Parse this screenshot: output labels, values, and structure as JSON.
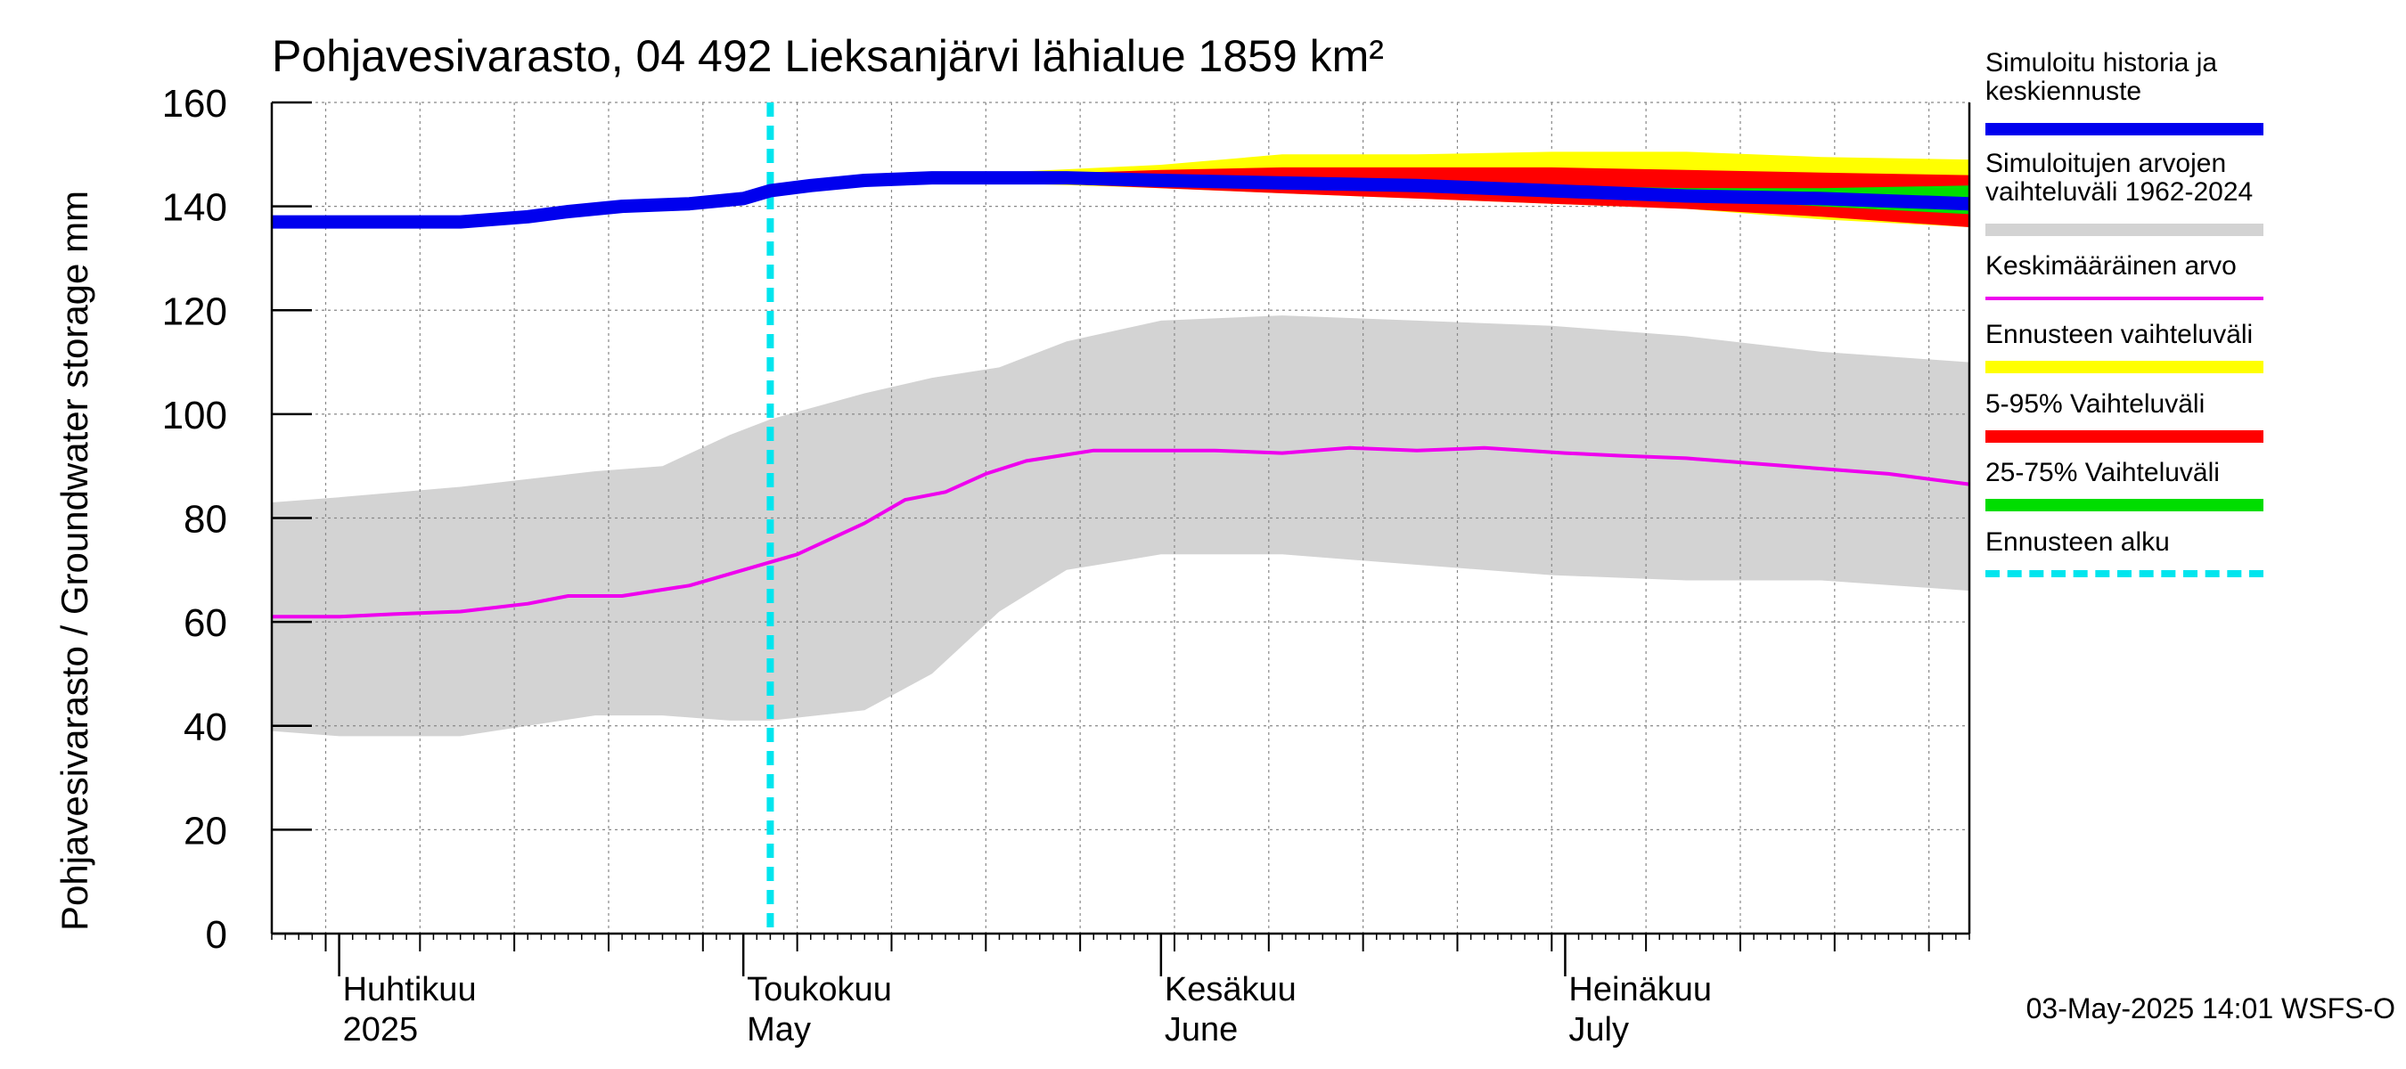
{
  "chart_data": {
    "type": "area",
    "title": "Pohjavesivarasto, 04 492 Lieksanjärvi lähialue 1859 km²",
    "ylabel": "Pohjavesivarasto / Groundwater storage   mm",
    "ylim": [
      0,
      160
    ],
    "yticks": [
      "0",
      "20",
      "40",
      "60",
      "80",
      "100",
      "120",
      "140",
      "160"
    ],
    "grid": true,
    "x_range": [
      "2025-03-27",
      "2025-07-31"
    ],
    "month_labels": [
      {
        "fi": "Huhtikuu",
        "en": "2025",
        "date": "2025-04-01"
      },
      {
        "fi": "Toukokuu",
        "en": "May",
        "date": "2025-05-01"
      },
      {
        "fi": "Kesäkuu",
        "en": "June",
        "date": "2025-06-01"
      },
      {
        "fi": "Heinäkuu",
        "en": "July",
        "date": "2025-07-01"
      }
    ],
    "forecast_start": "2025-05-03",
    "colors": {
      "history": "#0000ee",
      "hist_range": "#d3d3d3",
      "mean": "#ee00ee",
      "forecast_range": "#ffff00",
      "p5_95": "#ff0000",
      "p25_75": "#00dd00",
      "forecast_start": "#00e5ee"
    },
    "series": {
      "hist_range": {
        "dates": [
          "2025-03-27",
          "2025-04-01",
          "2025-04-10",
          "2025-04-20",
          "2025-04-25",
          "2025-04-30",
          "2025-05-03",
          "2025-05-10",
          "2025-05-15",
          "2025-05-20",
          "2025-05-25",
          "2025-06-01",
          "2025-06-10",
          "2025-06-20",
          "2025-06-30",
          "2025-07-10",
          "2025-07-20",
          "2025-07-31"
        ],
        "upper": [
          83,
          84,
          86,
          89,
          90,
          96,
          99,
          104,
          107,
          109,
          114,
          118,
          119,
          118,
          117,
          115,
          112,
          110
        ],
        "lower": [
          39,
          38,
          38,
          42,
          42,
          41,
          41,
          43,
          50,
          62,
          70,
          73,
          73,
          71,
          69,
          68,
          68,
          66
        ]
      },
      "mean": {
        "dates": [
          "2025-03-27",
          "2025-04-01",
          "2025-04-05",
          "2025-04-10",
          "2025-04-15",
          "2025-04-18",
          "2025-04-22",
          "2025-04-27",
          "2025-05-01",
          "2025-05-05",
          "2025-05-10",
          "2025-05-13",
          "2025-05-16",
          "2025-05-19",
          "2025-05-22",
          "2025-05-27",
          "2025-06-01",
          "2025-06-05",
          "2025-06-10",
          "2025-06-15",
          "2025-06-20",
          "2025-06-25",
          "2025-07-01",
          "2025-07-05",
          "2025-07-10",
          "2025-07-15",
          "2025-07-20",
          "2025-07-25",
          "2025-07-31"
        ],
        "values": [
          61,
          61,
          61.5,
          62,
          63.5,
          65,
          65,
          67,
          70,
          73,
          79,
          83.5,
          85,
          88.5,
          91,
          93,
          93,
          93,
          92.5,
          93.5,
          93,
          93.5,
          92.5,
          92,
          91.5,
          90.5,
          89.5,
          88.5,
          86.5
        ]
      },
      "history": {
        "name": "Simuloitu historia ja keskiennuste",
        "dates": [
          "2025-03-27",
          "2025-04-05",
          "2025-04-10",
          "2025-04-15",
          "2025-04-18",
          "2025-04-22",
          "2025-04-27",
          "2025-05-01",
          "2025-05-03",
          "2025-05-06",
          "2025-05-10",
          "2025-05-15",
          "2025-05-20",
          "2025-05-25",
          "2025-06-01",
          "2025-06-10",
          "2025-06-20",
          "2025-06-30",
          "2025-07-10",
          "2025-07-20",
          "2025-07-31"
        ],
        "values": [
          137,
          137,
          137,
          138,
          139,
          140,
          140.5,
          141.5,
          143,
          144,
          145,
          145.5,
          145.5,
          145.5,
          145,
          144.5,
          144,
          143,
          142,
          141.5,
          140.5
        ]
      },
      "forecast_range": {
        "dates": [
          "2025-05-10",
          "2025-05-20",
          "2025-06-01",
          "2025-06-10",
          "2025-06-20",
          "2025-06-30",
          "2025-07-10",
          "2025-07-20",
          "2025-07-31"
        ],
        "upper": [
          145.5,
          146.5,
          148,
          150,
          150,
          150.5,
          150.5,
          149.5,
          149
        ],
        "lower": [
          145.5,
          144.5,
          143.5,
          142.5,
          141.5,
          140.5,
          139.5,
          137.5,
          136
        ]
      },
      "p5_95": {
        "dates": [
          "2025-05-10",
          "2025-05-20",
          "2025-06-01",
          "2025-06-10",
          "2025-06-20",
          "2025-06-30",
          "2025-07-10",
          "2025-07-20",
          "2025-07-31"
        ],
        "upper": [
          145.5,
          146,
          147,
          147.5,
          147.5,
          147.5,
          147,
          146.5,
          146
        ],
        "lower": [
          145.5,
          144.8,
          143.5,
          142.5,
          141.5,
          140.5,
          139.5,
          138,
          136
        ]
      },
      "p25_75": {
        "dates": [
          "2025-05-10",
          "2025-05-20",
          "2025-06-01",
          "2025-06-10",
          "2025-06-20",
          "2025-06-30",
          "2025-07-10",
          "2025-07-20",
          "2025-07-31"
        ],
        "upper": [
          145.5,
          145.5,
          145.5,
          145,
          144.5,
          144,
          143.5,
          143.5,
          144
        ],
        "lower": [
          145.5,
          145,
          144.5,
          144,
          143.5,
          142.5,
          141.5,
          140,
          138.5
        ]
      }
    },
    "legend": [
      {
        "label": "Simuloitu historia ja\nkeskiennuste",
        "color": "#0000ee",
        "style": "thick"
      },
      {
        "label": "Simuloitujen arvojen\nvaihteluväli 1962-2024",
        "color": "#d3d3d3",
        "style": "thick"
      },
      {
        "label": "Keskimääräinen arvo",
        "color": "#ee00ee",
        "style": "thin"
      },
      {
        "label": "Ennusteen vaihteluväli",
        "color": "#ffff00",
        "style": "thick"
      },
      {
        "label": "5-95% Vaihteluväli",
        "color": "#ff0000",
        "style": "thick"
      },
      {
        "label": "25-75% Vaihteluväli",
        "color": "#00dd00",
        "style": "thick"
      },
      {
        "label": "Ennusteen alku",
        "color": "#00e5ee",
        "style": "dashed"
      }
    ],
    "footer": "03-May-2025 14:01 WSFS-O"
  }
}
